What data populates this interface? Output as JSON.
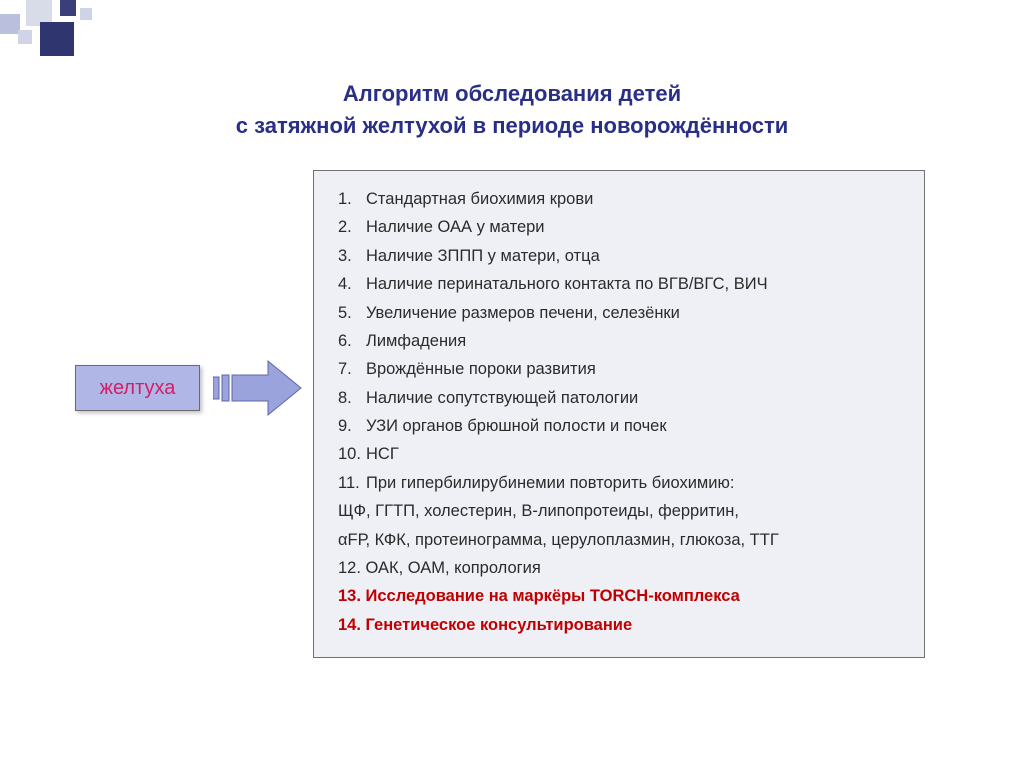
{
  "title": {
    "line1": "Алгоритм обследования детей",
    "line2": "с затяжной желтухой в периоде новорождённости",
    "color": "#2a2f86",
    "fontsize": 22
  },
  "start_box": {
    "label": "желтуха",
    "bg": "#b0b6e6",
    "text_color": "#d1206a",
    "border": "#6b6b6b"
  },
  "arrow": {
    "fill": "#9aa3db",
    "stroke": "#5c65a8"
  },
  "list_box": {
    "bg": "#eef0f6",
    "border": "#707070",
    "text_color": "#2b2b2b",
    "red_color": "#c00000",
    "fontsize": 16.5,
    "items": [
      {
        "n": "1.",
        "text": "Стандартная биохимия крови",
        "indent": true
      },
      {
        "n": "2.",
        "text": "Наличие ОАА у матери",
        "indent": true
      },
      {
        "n": "3.",
        "text": "Наличие ЗППП у матери, отца",
        "indent": true
      },
      {
        "n": "4.",
        "text": "Наличие перинатального контакта по ВГВ/ВГС, ВИЧ",
        "indent": true
      },
      {
        "n": "5.",
        "text": "Увеличение размеров печени, селезёнки",
        "indent": true
      },
      {
        "n": "6.",
        "text": "Лимфадения",
        "indent": true
      },
      {
        "n": "7.",
        "text": "Врождённые пороки развития",
        "indent": true
      },
      {
        "n": "8.",
        "text": "Наличие сопутствующей патологии",
        "indent": true
      },
      {
        "n": "9.",
        "text": "УЗИ органов брюшной полости и почек",
        "indent": true
      },
      {
        "n": "10.",
        "text": "НСГ",
        "indent": true
      },
      {
        "n": "11.",
        "text": "При гипербилирубинемии повторить биохимию:",
        "indent": true
      },
      {
        "n": "",
        "text": "ЩФ, ГГТП, холестерин, В-липопротеиды, ферритин,",
        "indent": false
      },
      {
        "n": "",
        "text": "αFР, КФК, протеинограмма, церулоплазмин, глюкоза, ТТГ",
        "indent": false
      },
      {
        "n": "12.",
        "text": "ОАК, ОАМ, копрология",
        "indent": false,
        "joined": true
      },
      {
        "n": "13.",
        "text": "Исследование на маркёры TORCH-комплекса",
        "indent": false,
        "red": true,
        "joined": true
      },
      {
        "n": "14.",
        "text": "Генетическое консультирование",
        "indent": false,
        "red": true,
        "joined": true
      }
    ]
  },
  "decoration": {
    "colors": [
      "#d8dbe8",
      "#3a3f7a",
      "#b9bfdc",
      "#2f356e",
      "#d0d4e6",
      "#cfd3e6"
    ]
  }
}
